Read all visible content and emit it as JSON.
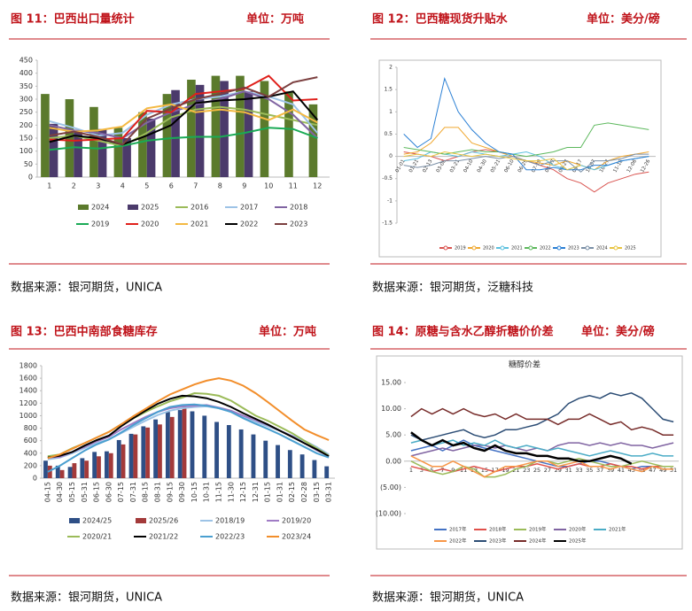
{
  "chart_data": [
    {
      "type": "bar",
      "title": "图 11：巴西出口量统计",
      "unit": "单位：万吨",
      "source": "数据来源：银河期货，UNICA",
      "categories": [
        "1",
        "2",
        "3",
        "4",
        "5",
        "6",
        "7",
        "8",
        "9",
        "10",
        "11",
        "12"
      ],
      "ylim": [
        0,
        450
      ],
      "yticks": [
        0,
        50,
        100,
        150,
        200,
        250,
        300,
        350,
        400,
        450
      ],
      "grid": false,
      "series": [
        {
          "name": "2024",
          "type": "bar",
          "color": "#5b7a2c",
          "values": [
            320,
            300,
            270,
            190,
            250,
            320,
            375,
            390,
            390,
            370,
            330,
            280
          ]
        },
        {
          "name": "2025",
          "type": "bar",
          "color": "#4b3a6b",
          "values": [
            205,
            175,
            185,
            150,
            225,
            335,
            355,
            370,
            330,
            null,
            null,
            null
          ]
        },
        {
          "name": "2016",
          "type": "line",
          "color": "#9bbb59",
          "values": [
            150,
            160,
            140,
            120,
            170,
            230,
            260,
            270,
            260,
            240,
            220,
            200
          ]
        },
        {
          "name": "2017",
          "type": "line",
          "color": "#9dc3e6",
          "values": [
            215,
            190,
            160,
            170,
            240,
            280,
            300,
            310,
            330,
            310,
            280,
            170
          ]
        },
        {
          "name": "2018",
          "type": "line",
          "color": "#8064a2",
          "values": [
            200,
            180,
            170,
            150,
            210,
            250,
            280,
            300,
            330,
            300,
            240,
            150
          ]
        },
        {
          "name": "2019",
          "type": "line",
          "color": "#1aaa55",
          "values": [
            105,
            115,
            110,
            120,
            140,
            150,
            155,
            155,
            170,
            190,
            185,
            150
          ]
        },
        {
          "name": "2020",
          "type": "line",
          "color": "#e0201b",
          "values": [
            145,
            140,
            145,
            150,
            255,
            250,
            320,
            330,
            340,
            390,
            295,
            300
          ]
        },
        {
          "name": "2021",
          "type": "line",
          "color": "#f4b942",
          "values": [
            190,
            175,
            180,
            195,
            265,
            280,
            250,
            260,
            250,
            220,
            260,
            210
          ]
        },
        {
          "name": "2022",
          "type": "line",
          "color": "#000000",
          "values": [
            135,
            160,
            150,
            125,
            160,
            200,
            285,
            295,
            300,
            310,
            330,
            220
          ]
        },
        {
          "name": "2023",
          "type": "line",
          "color": "#7b3f3f",
          "values": [
            160,
            175,
            155,
            125,
            225,
            265,
            300,
            320,
            345,
            310,
            365,
            385
          ]
        }
      ]
    },
    {
      "type": "line",
      "title": "图 12：巴西糖现货升贴水",
      "unit": "单位：美分/磅",
      "source": "数据来源：银河期货，泛糖科技",
      "categories": [
        "01-01",
        "01-21",
        "02-13",
        "03-06",
        "03-21",
        "04-10",
        "04-30",
        "05-21",
        "06-10",
        "06-29",
        "07-19",
        "08-07",
        "08-27",
        "09-17",
        "10-07",
        "10-27",
        "11-16",
        "12-06",
        "12-26"
      ],
      "ylim": [
        -1.5,
        2
      ],
      "yticks": [
        -1.5,
        -1,
        -0.5,
        0,
        0.5,
        1,
        1.5,
        2
      ],
      "grid": false,
      "series": [
        {
          "name": "2019",
          "type": "line",
          "color": "#d9534f",
          "values": [
            0.1,
            0.05,
            0,
            -0.1,
            0,
            0.1,
            0.15,
            0.1,
            0,
            -0.1,
            -0.2,
            -0.3,
            -0.5,
            -0.6,
            -0.8,
            -0.6,
            -0.5,
            -0.4,
            -0.35
          ]
        },
        {
          "name": "2020",
          "type": "line",
          "color": "#f0a830",
          "values": [
            0.05,
            0.1,
            0.3,
            0.65,
            0.65,
            0.3,
            0.2,
            0.1,
            0,
            -0.1,
            -0.15,
            -0.2,
            -0.1,
            -0.2,
            -0.3,
            -0.1,
            0,
            0.05,
            0.1
          ]
        },
        {
          "name": "2021",
          "type": "line",
          "color": "#5bc0de",
          "values": [
            -0.1,
            -0.05,
            0.1,
            0.05,
            0,
            0.1,
            0.05,
            0,
            0.05,
            0.1,
            0,
            -0.2,
            -0.3,
            -0.2,
            -0.3,
            -0.2,
            -0.1,
            -0.05,
            0
          ]
        },
        {
          "name": "2022",
          "type": "line",
          "color": "#5cb85c",
          "values": [
            0.2,
            0.15,
            0.1,
            0.05,
            0.1,
            0.15,
            0.1,
            0.1,
            0.05,
            0,
            0.05,
            0.1,
            0.2,
            0.2,
            0.7,
            0.75,
            0.7,
            0.65,
            0.6
          ]
        },
        {
          "name": "2023",
          "type": "line",
          "color": "#2a7fd4",
          "values": [
            0.5,
            0.2,
            0.4,
            1.75,
            1,
            0.6,
            0.3,
            0.1,
            0.05,
            -0.3,
            -0.3,
            -0.25,
            -0.3,
            -0.3,
            -0.2,
            -0.2,
            -0.1,
            -0.05,
            0
          ]
        },
        {
          "name": "2024",
          "type": "line",
          "color": "#7a8fa6",
          "values": [
            -0.2,
            -0.25,
            -0.2,
            -0.1,
            -0.1,
            -0.05,
            0,
            -0.05,
            0,
            -0.1,
            -0.2,
            -0.1,
            -0.1,
            -0.35,
            -0.1,
            -0.1,
            -0.05,
            0.05,
            0.05
          ]
        },
        {
          "name": "2025",
          "type": "line",
          "color": "#e8c440",
          "values": [
            0,
            0.05,
            0,
            0.1,
            0.05,
            0,
            0.05,
            0,
            -0.05,
            -0.1,
            -0.1,
            -0.05,
            -0.3,
            -0.2,
            null,
            null,
            null,
            null,
            null
          ]
        }
      ]
    },
    {
      "type": "bar",
      "title": "图 13：巴西中南部食糖库存",
      "unit": "单位：万吨",
      "source": "数据来源：银河期货，UNICA",
      "categories": [
        "04-15",
        "04-30",
        "05-15",
        "05-31",
        "06-15",
        "06-30",
        "07-15",
        "07-31",
        "08-15",
        "08-31",
        "09-15",
        "09-30",
        "10-15",
        "10-31",
        "11-15",
        "11-30",
        "12-15",
        "12-31",
        "01-15",
        "01-31",
        "02-15",
        "02-28",
        "03-15",
        "03-31"
      ],
      "ylim": [
        0,
        1800
      ],
      "yticks": [
        0,
        200,
        400,
        600,
        800,
        1000,
        1200,
        1400,
        1600,
        1800
      ],
      "grid": false,
      "series": [
        {
          "name": "2024/25",
          "type": "bar",
          "color": "#2e4f86",
          "values": [
            280,
            200,
            180,
            320,
            420,
            430,
            610,
            710,
            830,
            940,
            1060,
            1090,
            1070,
            1000,
            900,
            850,
            780,
            700,
            600,
            530,
            450,
            380,
            290,
            190
          ]
        },
        {
          "name": "2025/26",
          "type": "bar",
          "color": "#a33a3a",
          "values": [
            200,
            130,
            240,
            280,
            350,
            400,
            540,
            700,
            810,
            860,
            980,
            1180,
            null,
            null,
            null,
            null,
            null,
            null,
            null,
            null,
            null,
            null,
            null,
            null
          ]
        },
        {
          "name": "2018/19",
          "type": "line",
          "color": "#9dc3e6",
          "values": [
            300,
            330,
            400,
            480,
            560,
            620,
            720,
            820,
            920,
            1010,
            1080,
            1120,
            1140,
            1150,
            1120,
            1060,
            980,
            900,
            830,
            760,
            680,
            600,
            500,
            380
          ]
        },
        {
          "name": "2019/20",
          "type": "line",
          "color": "#a07cc5",
          "values": [
            330,
            340,
            420,
            500,
            590,
            660,
            780,
            880,
            980,
            1060,
            1120,
            1150,
            1160,
            1170,
            1130,
            1080,
            1000,
            930,
            850,
            760,
            670,
            560,
            450,
            360
          ]
        },
        {
          "name": "2020/21",
          "type": "line",
          "color": "#9bbb59",
          "values": [
            350,
            380,
            480,
            560,
            650,
            740,
            860,
            960,
            1060,
            1150,
            1230,
            1290,
            1360,
            1350,
            1320,
            1240,
            1120,
            1000,
            920,
            820,
            720,
            600,
            480,
            360
          ]
        },
        {
          "name": "2021/22",
          "type": "line",
          "color": "#000000",
          "values": [
            330,
            360,
            420,
            520,
            610,
            680,
            830,
            960,
            1080,
            1190,
            1270,
            1320,
            1310,
            1280,
            1220,
            1140,
            1040,
            950,
            860,
            760,
            660,
            560,
            460,
            350
          ]
        },
        {
          "name": "2022/23",
          "type": "line",
          "color": "#4a9fd0",
          "values": [
            100,
            200,
            320,
            440,
            540,
            620,
            730,
            850,
            960,
            1060,
            1140,
            1170,
            1180,
            1160,
            1120,
            1060,
            960,
            870,
            790,
            700,
            600,
            500,
            400,
            330
          ]
        },
        {
          "name": "2023/24",
          "type": "line",
          "color": "#f28e2b",
          "values": [
            320,
            380,
            470,
            560,
            650,
            740,
            860,
            990,
            1110,
            1230,
            1340,
            1420,
            1500,
            1560,
            1600,
            1560,
            1480,
            1360,
            1220,
            1070,
            920,
            780,
            690,
            610
          ]
        }
      ]
    },
    {
      "type": "line",
      "title": "图 14：原糖与含水乙醇折糖价价差",
      "unit": "单位：美分/磅",
      "source": "数据来源：银河期货，UNICA",
      "plot_title": "糖醇价差",
      "categories": [
        "1",
        "3",
        "5",
        "7",
        "9",
        "11",
        "13",
        "15",
        "17",
        "19",
        "21",
        "23",
        "25",
        "27",
        "29",
        "31",
        "33",
        "35",
        "37",
        "39",
        "41",
        "43",
        "45",
        "47",
        "49",
        "51"
      ],
      "ylim": [
        -10,
        15
      ],
      "yticks": [
        {
          "value": -10,
          "label": "(10.00)"
        },
        {
          "value": -5,
          "label": "(5.00)"
        },
        {
          "value": 0,
          "label": "0.00"
        },
        {
          "value": 5,
          "label": "5.00"
        },
        {
          "value": 10,
          "label": "10.00"
        },
        {
          "value": 15,
          "label": "15.00"
        }
      ],
      "grid": false,
      "series": [
        {
          "name": "2017年",
          "type": "line",
          "color": "#4472c4",
          "values": [
            2,
            2.5,
            3,
            2,
            3,
            4,
            3,
            2.5,
            2,
            1.5,
            1,
            0.5,
            0,
            -0.5,
            -1,
            -1,
            -0.5,
            0,
            0,
            -0.5,
            -1,
            -1.5,
            -1,
            -1,
            -1.5,
            -1.5
          ]
        },
        {
          "name": "2018年",
          "type": "line",
          "color": "#e0504a",
          "values": [
            -1,
            -1.5,
            -2,
            -1.5,
            -2,
            -1.5,
            -1,
            -1.5,
            -2,
            -1.5,
            -1,
            -1,
            -0.5,
            -1,
            -1.5,
            -1,
            -0.5,
            -1,
            -1,
            -0.5,
            -1,
            -1,
            -1.5,
            -1,
            -1,
            -1
          ]
        },
        {
          "name": "2019年",
          "type": "line",
          "color": "#9bbb59",
          "values": [
            0,
            -1,
            -2,
            -2.5,
            -2,
            -1,
            -1.5,
            -3,
            -3,
            -2.5,
            -1.5,
            -1,
            0,
            0,
            -0.5,
            0,
            0.5,
            0,
            -0.5,
            -1,
            -1,
            -0.5,
            0,
            -0.5,
            -1,
            -1
          ]
        },
        {
          "name": "2020年",
          "type": "line",
          "color": "#8064a2",
          "values": [
            1,
            1.5,
            2,
            2.5,
            2,
            2.5,
            3,
            3,
            2.5,
            3,
            2.5,
            2,
            2.5,
            2,
            3,
            3.5,
            3.5,
            3,
            3.5,
            3,
            3.5,
            3,
            3,
            2.5,
            3,
            3.5
          ]
        },
        {
          "name": "2021年",
          "type": "line",
          "color": "#4bacc6",
          "values": [
            3.5,
            4,
            3,
            3.5,
            4,
            3,
            3.5,
            3,
            4,
            3,
            2.5,
            3,
            2.5,
            2,
            2.5,
            2,
            1.5,
            1,
            1.5,
            2,
            1.5,
            1,
            1,
            1.5,
            1,
            1
          ]
        },
        {
          "name": "2022年",
          "type": "line",
          "color": "#f79646",
          "values": [
            1,
            0,
            -1,
            -1,
            0,
            -1,
            -2,
            -3,
            -2,
            -1,
            -1,
            -0.5,
            0,
            0,
            -1,
            -0.5,
            0,
            -1,
            -1,
            -1.5,
            -1,
            -1.5,
            -2,
            -1,
            -1.5,
            -1.5
          ]
        },
        {
          "name": "2023年",
          "type": "line",
          "color": "#2c4d75",
          "values": [
            5,
            4,
            4.5,
            5,
            5.5,
            6,
            5,
            4.5,
            5,
            6,
            6,
            6.5,
            7,
            8,
            9,
            11,
            12,
            12.5,
            12,
            13,
            12.5,
            13,
            12,
            10,
            8,
            7.5
          ]
        },
        {
          "name": "2024年",
          "type": "line",
          "color": "#772c2a",
          "values": [
            8.5,
            10,
            9,
            10,
            9,
            10,
            9,
            8.5,
            9,
            8,
            9,
            8,
            8,
            8,
            7,
            8,
            8,
            9,
            8,
            7,
            7.5,
            6,
            6.5,
            6,
            5,
            5
          ]
        },
        {
          "name": "2025年",
          "type": "line",
          "color": "#000000",
          "values": [
            5.5,
            4,
            3,
            4,
            3,
            3.5,
            2.5,
            2,
            3,
            2,
            1.5,
            1.5,
            1,
            1,
            0.5,
            0.5,
            0,
            0,
            0.5,
            1,
            0.5,
            -0.5,
            null,
            null,
            null,
            null
          ]
        }
      ]
    }
  ]
}
